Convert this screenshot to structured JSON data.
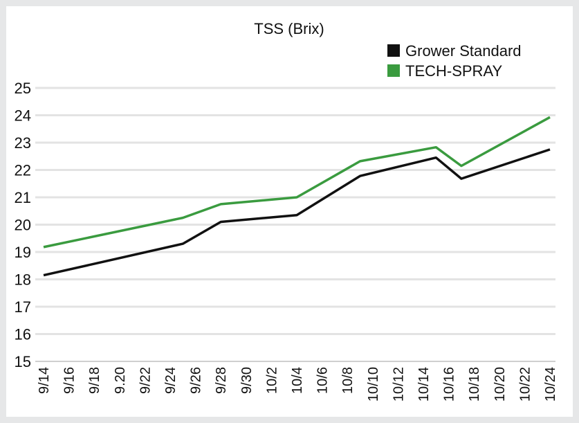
{
  "chart_data": {
    "type": "line",
    "title": "TSS (Brix)",
    "xlabel": "",
    "ylabel": "",
    "ylim": [
      15,
      25
    ],
    "yticks": [
      15,
      16,
      17,
      18,
      19,
      20,
      21,
      22,
      23,
      24,
      25
    ],
    "grid": true,
    "legend_position": "top-right",
    "x_tick_labels": [
      "9/14",
      "9/16",
      "9/18",
      "9.20",
      "9/22",
      "9/24",
      "9/26",
      "9/28",
      "9/30",
      "10/2",
      "10/4",
      "10/6",
      "10/8",
      "10/10",
      "10/12",
      "10/14",
      "10/16",
      "10/18",
      "10/20",
      "10/22",
      "10/24"
    ],
    "series": [
      {
        "name": "Grower Standard",
        "color": "#111111",
        "points": [
          {
            "x": "9/14",
            "y": 18.15
          },
          {
            "x": "9/25",
            "y": 19.3
          },
          {
            "x": "9/28",
            "y": 20.1
          },
          {
            "x": "10/4",
            "y": 20.35
          },
          {
            "x": "10/9",
            "y": 21.78
          },
          {
            "x": "10/15",
            "y": 22.45
          },
          {
            "x": "10/17",
            "y": 21.68
          },
          {
            "x": "10/24",
            "y": 22.75
          }
        ]
      },
      {
        "name": "TECH-SPRAY",
        "color": "#3a9b3f",
        "points": [
          {
            "x": "9/14",
            "y": 19.18
          },
          {
            "x": "9/25",
            "y": 20.25
          },
          {
            "x": "9/28",
            "y": 20.75
          },
          {
            "x": "10/4",
            "y": 21.0
          },
          {
            "x": "10/9",
            "y": 22.32
          },
          {
            "x": "10/15",
            "y": 22.83
          },
          {
            "x": "10/17",
            "y": 22.15
          },
          {
            "x": "10/24",
            "y": 23.93
          }
        ]
      }
    ]
  }
}
